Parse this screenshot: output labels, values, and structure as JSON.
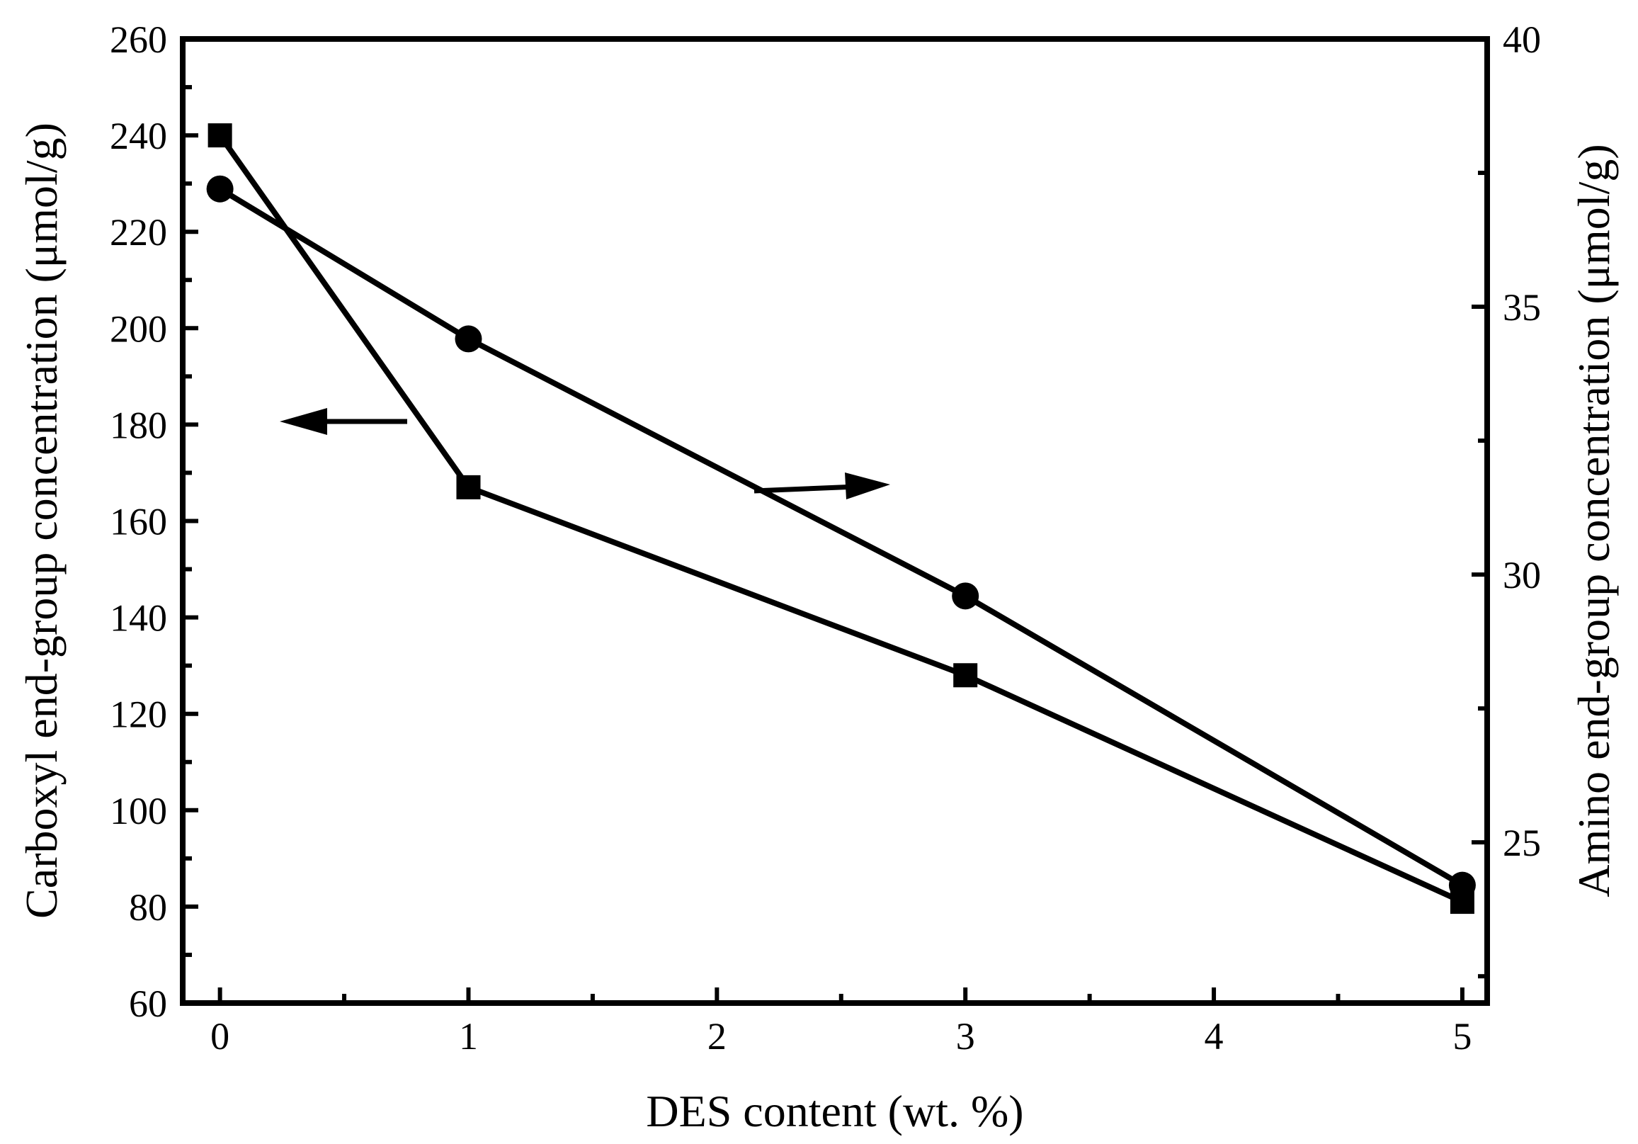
{
  "chart_data": {
    "type": "line",
    "title": "",
    "xlabel": "DES content (wt. %)",
    "ylabel": "Carboxyl end-group concentration (μmol/g)",
    "y2label": "Amino end-group concentration (μmol/g)",
    "xlim": [
      -0.15,
      5.1
    ],
    "ylim": [
      60,
      260
    ],
    "y2lim": [
      22,
      40
    ],
    "x_ticks": [
      0,
      1,
      2,
      3,
      4,
      5
    ],
    "y_ticks": [
      60,
      80,
      100,
      120,
      140,
      160,
      180,
      200,
      220,
      240,
      260
    ],
    "y2_ticks": [
      25,
      30,
      35,
      40
    ],
    "x": [
      0,
      1,
      3,
      5
    ],
    "series": [
      {
        "axis": "left",
        "marker": "square",
        "values": [
          240,
          167,
          128,
          81
        ]
      },
      {
        "axis": "right",
        "marker": "circle",
        "values": [
          37.2,
          34.4,
          29.6,
          24.2
        ]
      }
    ],
    "annotations": [
      {
        "type": "arrow",
        "direction": "left",
        "points_to": "left axis"
      },
      {
        "type": "arrow",
        "direction": "right",
        "points_to": "right axis"
      }
    ],
    "grid": false,
    "legend": "none",
    "colors": {
      "line": "#000000",
      "marker": "#000000"
    }
  }
}
